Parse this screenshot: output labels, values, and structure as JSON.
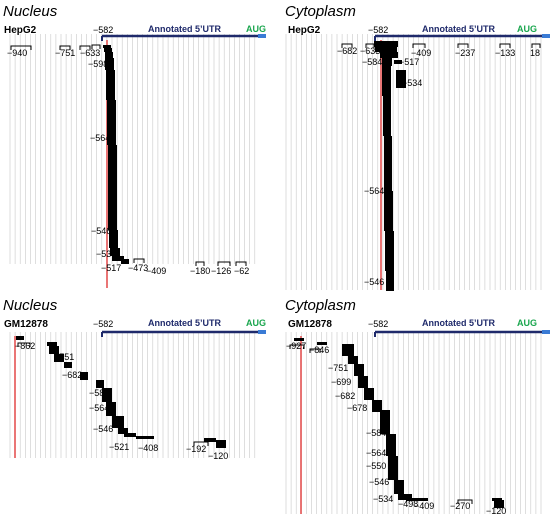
{
  "colors": {
    "utr_line": "#1f2a6b",
    "utr_text": "#1f2a6b",
    "aug_text": "#1aa64e",
    "aug_end": "#3a7bd5",
    "red_line": "#e03b3b",
    "grid": "#c8c8c8",
    "read": "#000000"
  },
  "panels": [
    {
      "title": "Nucleus",
      "cell": "HepG2",
      "utr_label": "Annotated 5’UTR",
      "aug_label": "AUG",
      "start_label": "−582",
      "labels": [
        "−940",
        "−751",
        "−633",
        "−598",
        "−564",
        "−546",
        "−534",
        "−517",
        "−473",
        "−409",
        "−180",
        "−126",
        "−62"
      ]
    },
    {
      "title": "Cytoplasm",
      "cell": "HepG2",
      "utr_label": "Annotated 5’UTR",
      "aug_label": "AUG",
      "start_label": "−582",
      "labels": [
        "−682",
        "−633",
        "−584",
        "−517",
        "−409",
        "−534",
        "−237",
        "−133",
        "18",
        "−564",
        "−546"
      ]
    },
    {
      "title": "Nucleus",
      "cell": "GM12878",
      "utr_label": "Annotated 5’UTR",
      "aug_label": "AUG",
      "start_label": "−582",
      "labels": [
        "−862",
        "−751",
        "−682",
        "−584",
        "−564",
        "−546",
        "−521",
        "−408",
        "−192",
        "−120"
      ]
    },
    {
      "title": "Cytoplasm",
      "cell": "GM12878",
      "utr_label": "Annotated 5’UTR",
      "aug_label": "AUG",
      "start_label": "−582",
      "labels": [
        "−927",
        "−846",
        "−751",
        "−699",
        "−682",
        "−678",
        "−584",
        "−564",
        "−550",
        "−546",
        "−534",
        "−498",
        "−409",
        "−270",
        "−120"
      ]
    }
  ]
}
